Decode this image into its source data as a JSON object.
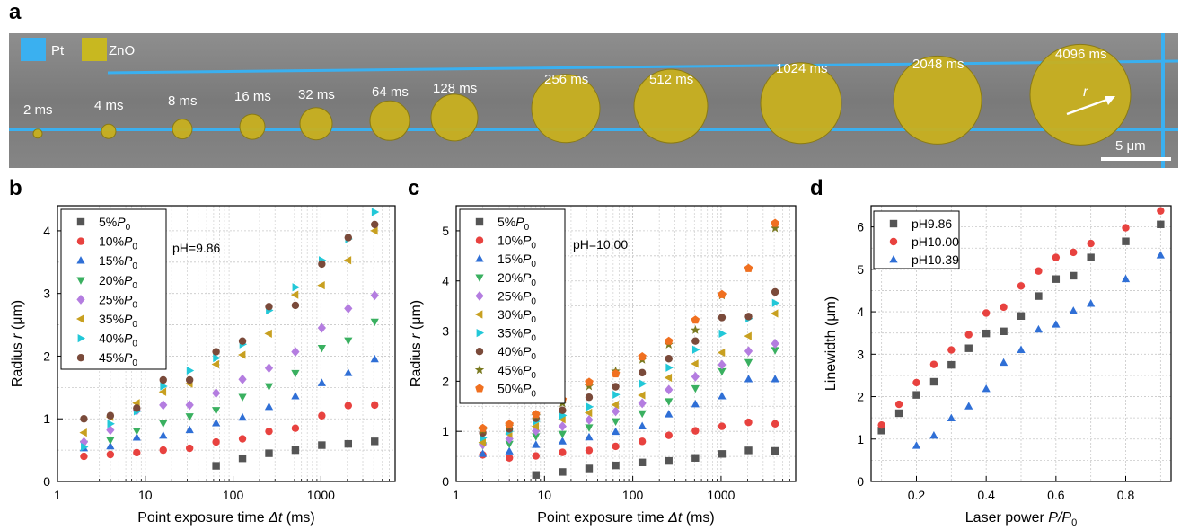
{
  "panel_letters": {
    "a": "a",
    "b": "b",
    "c": "c",
    "d": "d"
  },
  "sem": {
    "legend": [
      {
        "label": "Pt",
        "color": "#3ab0f0"
      },
      {
        "label": "ZnO",
        "color": "#c8b820"
      }
    ],
    "exposure_labels": [
      "2 ms",
      "4 ms",
      "8 ms",
      "16 ms",
      "32 ms",
      "64 ms",
      "128 ms",
      "256 ms",
      "512 ms",
      "1024 ms",
      "2048 ms",
      "4096 ms"
    ],
    "radius_label": "r",
    "scale_bar_label": "5 μm"
  },
  "chart_data": [
    {
      "type": "scatter",
      "panel": "b",
      "xlabel_prefix": "Point exposure time ",
      "xlabel_var": "Δt",
      "xlabel_suffix": " (ms)",
      "ylabel_prefix": "Radius ",
      "ylabel_var": "r",
      "ylabel_suffix": " (μm)",
      "x_scale": "log",
      "xlim": [
        1,
        7000
      ],
      "ylim": [
        0,
        4.4
      ],
      "xticks": [
        1,
        10,
        100,
        1000
      ],
      "xtick_labels": [
        "1",
        "10",
        "100",
        "1000"
      ],
      "yticks": [
        0,
        1,
        2,
        3,
        4
      ],
      "ytick_labels": [
        "0",
        "1",
        "2",
        "3",
        "4"
      ],
      "grid": true,
      "legend_position": "top-left",
      "annotation": "pH=9.86",
      "x": [
        2,
        4,
        8,
        16,
        32,
        64,
        128,
        256,
        512,
        1024,
        2048,
        4096
      ],
      "series": [
        {
          "name": "5%P0",
          "label_main": "5%",
          "label_var": "P",
          "label_sub": "0",
          "color": "#555555",
          "marker": "square",
          "values": [
            null,
            null,
            null,
            null,
            null,
            0.25,
            0.37,
            0.45,
            0.5,
            0.58,
            0.6,
            0.64
          ]
        },
        {
          "name": "10%P0",
          "label_main": "10%",
          "label_var": "P",
          "label_sub": "0",
          "color": "#e8423f",
          "marker": "circle",
          "values": [
            0.4,
            0.43,
            0.46,
            0.5,
            0.53,
            0.63,
            0.68,
            0.8,
            0.85,
            1.05,
            1.21,
            1.22
          ]
        },
        {
          "name": "15%P0",
          "label_main": "15%",
          "label_var": "P",
          "label_sub": "0",
          "color": "#2f6fd6",
          "marker": "triangle-up",
          "values": [
            0.53,
            0.56,
            0.7,
            0.73,
            0.82,
            0.93,
            1.02,
            1.19,
            1.36,
            1.57,
            1.73,
            1.95
          ]
        },
        {
          "name": "20%P0",
          "label_main": "20%",
          "label_var": "P",
          "label_sub": "0",
          "color": "#3ab060",
          "marker": "triangle-down",
          "values": [
            0.6,
            0.66,
            0.81,
            0.93,
            1.04,
            1.14,
            1.35,
            1.52,
            1.73,
            2.13,
            2.25,
            2.55
          ]
        },
        {
          "name": "25%P0",
          "label_main": "25%",
          "label_var": "P",
          "label_sub": "0",
          "color": "#b47de0",
          "marker": "diamond",
          "values": [
            0.63,
            0.82,
            1.13,
            1.22,
            1.22,
            1.41,
            1.63,
            1.81,
            2.07,
            2.45,
            2.76,
            2.97
          ]
        },
        {
          "name": "35%P0",
          "label_main": "35%",
          "label_var": "P",
          "label_sub": "0",
          "color": "#c8a020",
          "marker": "triangle-left",
          "values": [
            0.78,
            1.03,
            1.25,
            1.43,
            1.56,
            1.87,
            2.02,
            2.36,
            2.98,
            3.13,
            3.53,
            4.0
          ]
        },
        {
          "name": "40%P0",
          "label_main": "40%",
          "label_var": "P",
          "label_sub": "0",
          "color": "#22c8d8",
          "marker": "triangle-right",
          "values": [
            0.55,
            0.92,
            1.12,
            1.52,
            1.77,
            1.97,
            2.19,
            2.73,
            3.1,
            3.53,
            3.87,
            4.3
          ]
        },
        {
          "name": "45%P0",
          "label_main": "45%",
          "label_var": "P",
          "label_sub": "0",
          "color": "#7a4a3a",
          "marker": "circle",
          "values": [
            1.0,
            1.05,
            1.17,
            1.62,
            1.62,
            2.07,
            2.24,
            2.79,
            2.81,
            3.47,
            3.89,
            4.1
          ]
        }
      ]
    },
    {
      "type": "scatter",
      "panel": "c",
      "xlabel_prefix": "Point exposure time ",
      "xlabel_var": "Δt",
      "xlabel_suffix": " (ms)",
      "ylabel_prefix": "Radius ",
      "ylabel_var": "r",
      "ylabel_suffix": " (μm)",
      "x_scale": "log",
      "xlim": [
        1,
        7000
      ],
      "ylim": [
        0,
        5.5
      ],
      "xticks": [
        1,
        10,
        100,
        1000
      ],
      "xtick_labels": [
        "1",
        "10",
        "100",
        "1000"
      ],
      "yticks": [
        0,
        1,
        2,
        3,
        4,
        5
      ],
      "ytick_labels": [
        "0",
        "1",
        "2",
        "3",
        "4",
        "5"
      ],
      "grid": true,
      "legend_position": "top-left",
      "annotation": "pH=10.00",
      "x": [
        2,
        4,
        8,
        16,
        32,
        64,
        128,
        256,
        512,
        1024,
        2048,
        4096
      ],
      "series": [
        {
          "name": "5%P0",
          "label_main": "5%",
          "label_var": "P",
          "label_sub": "0",
          "color": "#555555",
          "marker": "square",
          "values": [
            null,
            null,
            0.13,
            0.19,
            0.26,
            0.32,
            0.38,
            0.41,
            0.47,
            0.55,
            0.62,
            0.61
          ]
        },
        {
          "name": "10%P0",
          "label_main": "10%",
          "label_var": "P",
          "label_sub": "0",
          "color": "#e8423f",
          "marker": "circle",
          "values": [
            0.53,
            0.47,
            0.51,
            0.58,
            0.62,
            0.7,
            0.8,
            0.92,
            1.01,
            1.1,
            1.18,
            1.15
          ]
        },
        {
          "name": "15%P0",
          "label_main": "15%",
          "label_var": "P",
          "label_sub": "0",
          "color": "#2f6fd6",
          "marker": "triangle-up",
          "values": [
            0.55,
            0.6,
            0.73,
            0.8,
            0.88,
            0.99,
            1.1,
            1.34,
            1.54,
            1.7,
            2.04,
            2.04
          ]
        },
        {
          "name": "20%P0",
          "label_main": "20%",
          "label_var": "P",
          "label_sub": "0",
          "color": "#3ab060",
          "marker": "triangle-down",
          "values": [
            0.72,
            0.75,
            0.9,
            0.95,
            1.08,
            1.2,
            1.36,
            1.6,
            1.86,
            2.2,
            2.38,
            2.62
          ]
        },
        {
          "name": "25%P0",
          "label_main": "25%",
          "label_var": "P",
          "label_sub": "0",
          "color": "#b47de0",
          "marker": "diamond",
          "values": [
            0.74,
            0.85,
            1.01,
            1.1,
            1.23,
            1.4,
            1.56,
            1.83,
            2.09,
            2.33,
            2.6,
            2.75
          ]
        },
        {
          "name": "30%P0",
          "label_main": "30%",
          "label_var": "P",
          "label_sub": "0",
          "color": "#c8a020",
          "marker": "triangle-left",
          "values": [
            0.78,
            0.95,
            1.1,
            1.24,
            1.37,
            1.53,
            1.72,
            2.07,
            2.35,
            2.57,
            2.9,
            3.35
          ]
        },
        {
          "name": "35%P0",
          "label_main": "35%",
          "label_var": "P",
          "label_sub": "0",
          "color": "#22c8d8",
          "marker": "triangle-right",
          "values": [
            0.87,
            1.0,
            1.2,
            1.32,
            1.49,
            1.73,
            1.95,
            2.27,
            2.63,
            2.95,
            3.25,
            3.56
          ]
        },
        {
          "name": "40%P0",
          "label_main": "40%",
          "label_var": "P",
          "label_sub": "0",
          "color": "#7a4a3a",
          "marker": "circle",
          "values": [
            0.97,
            1.05,
            1.26,
            1.42,
            1.68,
            1.89,
            2.17,
            2.45,
            2.8,
            3.27,
            3.29,
            3.78
          ]
        },
        {
          "name": "45%P0",
          "label_main": "45%",
          "label_var": "P",
          "label_sub": "0",
          "color": "#7a7a20",
          "marker": "star",
          "values": [
            1.02,
            1.1,
            1.31,
            1.56,
            1.9,
            2.2,
            2.43,
            2.73,
            3.02,
            3.71,
            4.25,
            5.05
          ]
        },
        {
          "name": "50%P0",
          "label_main": "50%",
          "label_var": "P",
          "label_sub": "0",
          "color": "#f07020",
          "marker": "pentagon",
          "values": [
            1.06,
            1.14,
            1.34,
            1.63,
            1.98,
            2.15,
            2.49,
            2.8,
            3.22,
            3.73,
            4.25,
            5.15
          ]
        }
      ]
    },
    {
      "type": "scatter",
      "panel": "d",
      "xlabel_prefix": "Laser power ",
      "xlabel_var": "P/P",
      "xlabel_sub": "0",
      "xlabel_suffix": "",
      "ylabel_prefix": "Linewidth (μm)",
      "ylabel_var": "",
      "ylabel_suffix": "",
      "x_scale": "linear",
      "xlim": [
        0.07,
        0.93
      ],
      "ylim": [
        0,
        6.5
      ],
      "xticks": [
        0.2,
        0.4,
        0.6,
        0.8
      ],
      "xtick_labels": [
        "0.2",
        "0.4",
        "0.6",
        "0.8"
      ],
      "yticks": [
        0,
        1,
        2,
        3,
        4,
        5,
        6
      ],
      "ytick_labels": [
        "0",
        "1",
        "2",
        "3",
        "4",
        "5",
        "6"
      ],
      "grid": true,
      "legend_position": "top-left",
      "series": [
        {
          "name": "pH9.86",
          "label_main": "pH9.86",
          "color": "#555555",
          "marker": "square",
          "x": [
            0.1,
            0.15,
            0.2,
            0.25,
            0.3,
            0.35,
            0.4,
            0.45,
            0.5,
            0.55,
            0.6,
            0.65,
            0.7,
            0.8,
            0.9
          ],
          "values": [
            1.2,
            1.61,
            2.04,
            2.35,
            2.75,
            3.14,
            3.49,
            3.54,
            3.9,
            4.37,
            4.77,
            4.85,
            5.28,
            5.66,
            6.06
          ]
        },
        {
          "name": "pH10.00",
          "label_main": "pH10.00",
          "color": "#e8423f",
          "marker": "circle",
          "x": [
            0.1,
            0.15,
            0.2,
            0.25,
            0.3,
            0.35,
            0.4,
            0.45,
            0.5,
            0.55,
            0.6,
            0.65,
            0.7,
            0.8,
            0.9
          ],
          "values": [
            1.33,
            1.82,
            2.33,
            2.76,
            3.1,
            3.46,
            3.97,
            4.11,
            4.61,
            4.96,
            5.28,
            5.4,
            5.61,
            5.98,
            6.38
          ]
        },
        {
          "name": "pH10.39",
          "label_main": "pH10.39",
          "color": "#2f6fd6",
          "marker": "triangle-up",
          "x": [
            0.2,
            0.25,
            0.3,
            0.35,
            0.4,
            0.45,
            0.5,
            0.55,
            0.6,
            0.65,
            0.7,
            0.8,
            0.9
          ],
          "values": [
            0.84,
            1.08,
            1.49,
            1.77,
            2.18,
            2.8,
            3.1,
            3.58,
            3.7,
            4.02,
            4.19,
            4.77,
            5.33
          ]
        }
      ]
    }
  ]
}
